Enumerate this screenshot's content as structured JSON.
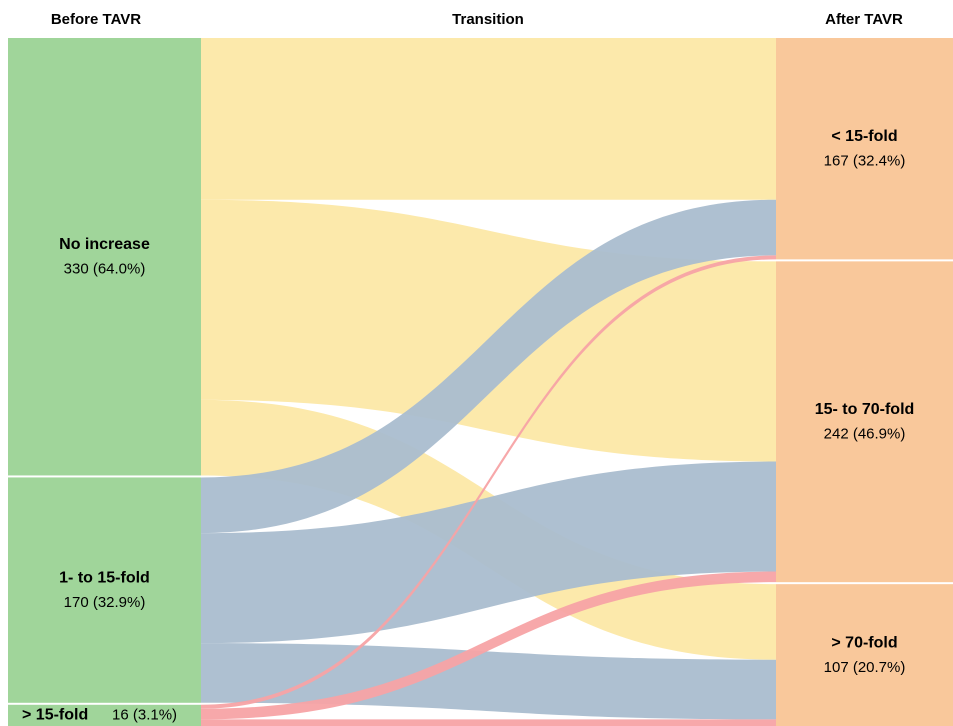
{
  "chart_data": {
    "type": "sankey",
    "columns": [
      {
        "title": "Before TAVR",
        "color": "#a0d59a",
        "nodes": [
          {
            "name": "No increase",
            "value": 330,
            "value_label": "330 (64.0%)",
            "flow_color": "#fce8a6"
          },
          {
            "name": "1- to 15-fold",
            "value": 170,
            "value_label": "170 (32.9%)",
            "flow_color": "#aabdcf"
          },
          {
            "name": "> 15-fold",
            "value": 16,
            "value_label": "16 (3.1%)",
            "flow_color": "#f7a3a5"
          }
        ]
      },
      {
        "title": "Transition"
      },
      {
        "title": "After TAVR",
        "color": "#f9c89b",
        "nodes": [
          {
            "name": "< 15-fold",
            "value": 167,
            "value_label": "167 (32.4%)"
          },
          {
            "name": "15- to 70-fold",
            "value": 242,
            "value_label": "242 (46.9%)"
          },
          {
            "name": "> 70-fold",
            "value": 107,
            "value_label": "107 (20.7%)"
          }
        ]
      }
    ],
    "links": [
      {
        "source": "No increase",
        "target": "< 15-fold",
        "value": 122
      },
      {
        "source": "No increase",
        "target": "15- to 70-fold",
        "value": 151
      },
      {
        "source": "No increase",
        "target": "> 70-fold",
        "value": 57
      },
      {
        "source": "1- to 15-fold",
        "target": "< 15-fold",
        "value": 42
      },
      {
        "source": "1- to 15-fold",
        "target": "15- to 70-fold",
        "value": 83
      },
      {
        "source": "1- to 15-fold",
        "target": "> 70-fold",
        "value": 45
      },
      {
        "source": "> 15-fold",
        "target": "< 15-fold",
        "value": 3
      },
      {
        "source": "> 15-fold",
        "target": "15- to 70-fold",
        "value": 8
      },
      {
        "source": "> 15-fold",
        "target": "> 70-fold",
        "value": 5
      }
    ]
  }
}
